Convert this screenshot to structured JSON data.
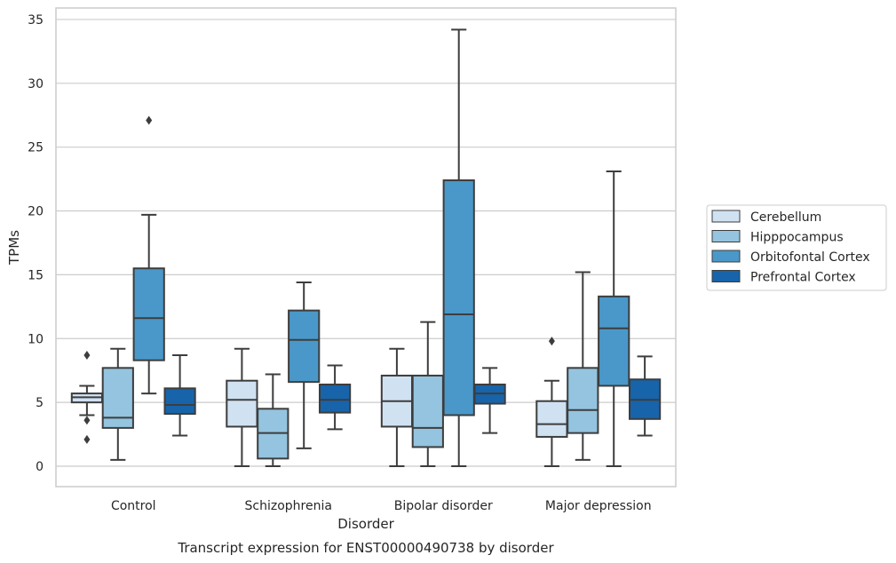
{
  "chart_data": {
    "type": "box",
    "xlabel": "Disorder",
    "ylabel": "TPMs",
    "caption": "Transcript expression for ENST00000490738 by disorder",
    "ylim": [
      -1.6,
      35.9
    ],
    "yticks": [
      0,
      5,
      10,
      15,
      20,
      25,
      30,
      35
    ],
    "grid": "horizontal",
    "legend_position": "right",
    "categories": [
      "Control",
      "Schizophrenia",
      "Bipolar disorder",
      "Major depression"
    ],
    "series": [
      {
        "name": "Cerebellum",
        "color": "#d0e1f2",
        "boxes": [
          {
            "whislo": 4.0,
            "q1": 5.0,
            "med": 5.4,
            "q3": 5.7,
            "whishi": 6.3,
            "fliers": [
              8.7,
              3.6,
              2.1
            ]
          },
          {
            "whislo": 0.0,
            "q1": 3.1,
            "med": 5.2,
            "q3": 6.7,
            "whishi": 9.2,
            "fliers": []
          },
          {
            "whislo": 0.0,
            "q1": 3.1,
            "med": 5.1,
            "q3": 7.1,
            "whishi": 9.2,
            "fliers": []
          },
          {
            "whislo": 0.0,
            "q1": 2.3,
            "med": 3.3,
            "q3": 5.1,
            "whishi": 6.7,
            "fliers": [
              9.8
            ]
          }
        ]
      },
      {
        "name": "Hipppocampus",
        "color": "#94c4df",
        "boxes": [
          {
            "whislo": 0.5,
            "q1": 3.0,
            "med": 3.8,
            "q3": 7.7,
            "whishi": 9.2,
            "fliers": []
          },
          {
            "whislo": 0.0,
            "q1": 0.6,
            "med": 2.6,
            "q3": 4.5,
            "whishi": 7.2,
            "fliers": []
          },
          {
            "whislo": 0.0,
            "q1": 1.5,
            "med": 3.0,
            "q3": 7.1,
            "whishi": 11.3,
            "fliers": []
          },
          {
            "whislo": 0.5,
            "q1": 2.6,
            "med": 4.4,
            "q3": 7.7,
            "whishi": 15.2,
            "fliers": []
          }
        ]
      },
      {
        "name": "Orbitofontal Cortex",
        "color": "#4a98c9",
        "boxes": [
          {
            "whislo": 5.7,
            "q1": 8.3,
            "med": 11.6,
            "q3": 15.5,
            "whishi": 19.7,
            "fliers": [
              27.1
            ]
          },
          {
            "whislo": 1.4,
            "q1": 6.6,
            "med": 9.9,
            "q3": 12.2,
            "whishi": 14.4,
            "fliers": []
          },
          {
            "whislo": 0.0,
            "q1": 4.0,
            "med": 11.9,
            "q3": 22.4,
            "whishi": 34.2,
            "fliers": []
          },
          {
            "whislo": 0.0,
            "q1": 6.3,
            "med": 10.8,
            "q3": 13.3,
            "whishi": 23.1,
            "fliers": []
          }
        ]
      },
      {
        "name": "Prefrontal Cortex",
        "color": "#1764ab",
        "boxes": [
          {
            "whislo": 2.4,
            "q1": 4.1,
            "med": 4.8,
            "q3": 6.1,
            "whishi": 8.7,
            "fliers": []
          },
          {
            "whislo": 2.9,
            "q1": 4.2,
            "med": 5.2,
            "q3": 6.4,
            "whishi": 7.9,
            "fliers": []
          },
          {
            "whislo": 2.6,
            "q1": 4.9,
            "med": 5.7,
            "q3": 6.4,
            "whishi": 7.7,
            "fliers": []
          },
          {
            "whislo": 2.4,
            "q1": 3.7,
            "med": 5.2,
            "q3": 6.8,
            "whishi": 8.6,
            "fliers": []
          }
        ]
      }
    ]
  }
}
